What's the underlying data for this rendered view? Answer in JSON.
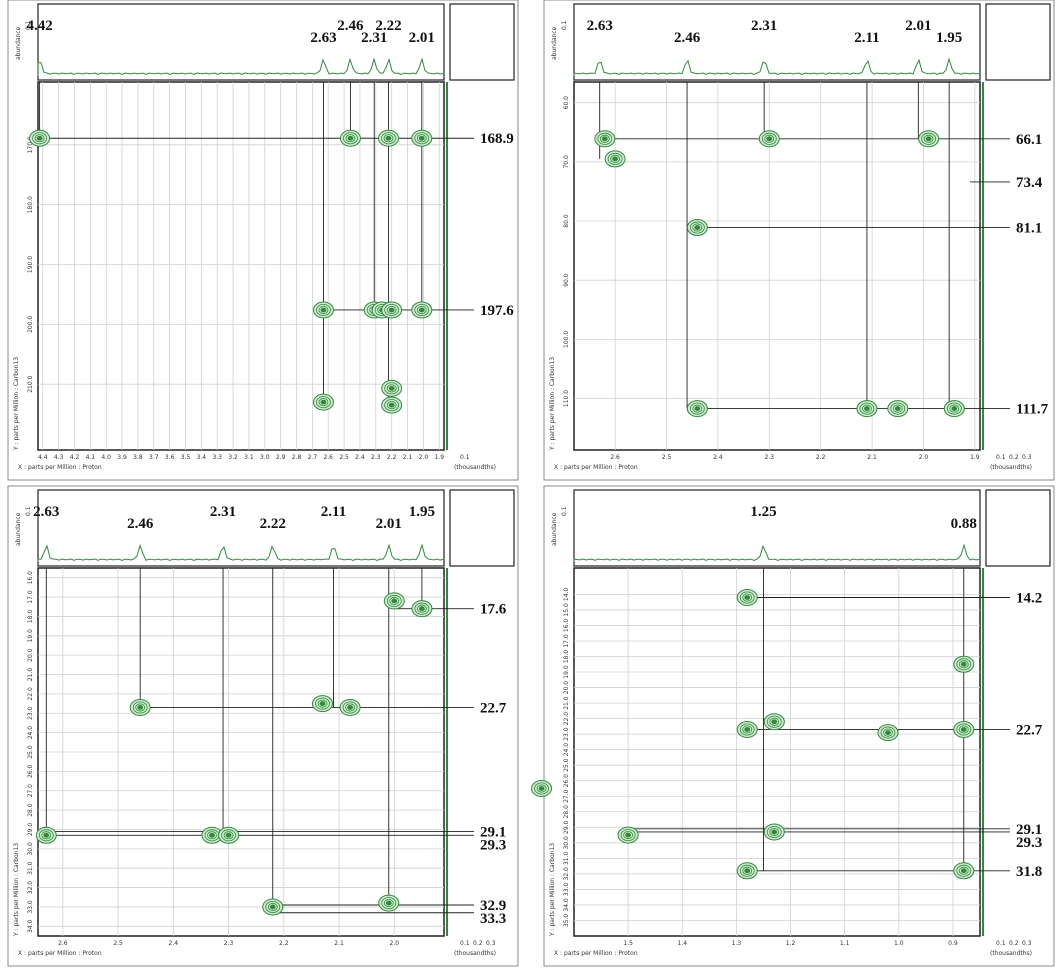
{
  "chart_data": [
    {
      "type": "nmr2d",
      "x_label": "X : parts per Million : Proton",
      "y_label": "Y : parts per Million : Carbon13",
      "top_label": "abundance",
      "top_tick": 0.1,
      "side_label": "(thousandths)",
      "side_ticks": [
        0.1
      ],
      "xlim": [
        4.43,
        1.87
      ],
      "ylim": [
        159.5,
        221
      ],
      "xticks": [
        4.4,
        4.3,
        4.2,
        4.1,
        {
          "value": 4,
          "label": "4.0"
        },
        3.9,
        3.8,
        3.7,
        3.6,
        3.5,
        3.4,
        3.3,
        3.2,
        3.1,
        {
          "value": 3,
          "label": "3.0"
        },
        2.9,
        2.8,
        2.7,
        2.6,
        2.5,
        2.4,
        2.3,
        2.2,
        2.1,
        {
          "value": 2,
          "label": "2.0"
        },
        1.9
      ],
      "yticks": [
        {
          "value": 170,
          "label": "170.0"
        },
        {
          "value": 180,
          "label": "180.0"
        },
        {
          "value": 190,
          "label": "190.0"
        },
        {
          "value": 200,
          "label": "200.0"
        },
        {
          "value": 210,
          "label": "210.0"
        }
      ],
      "h_labels": [
        4.42,
        2.63,
        2.46,
        2.31,
        2.22,
        2.01
      ],
      "c_labels": [
        168.9,
        197.6
      ],
      "peaks": {
        "x": [
          4.42,
          2.46,
          2.22,
          2.01,
          2.63,
          2.31,
          2.26,
          2.2,
          2.01,
          2.63,
          2.2,
          2.2
        ],
        "y": [
          168.9,
          168.9,
          168.9,
          168.9,
          197.6,
          197.6,
          197.6,
          197.6,
          197.6,
          213,
          210.7,
          213.5
        ]
      },
      "color": "#2e8b3a",
      "grid": true
    },
    {
      "type": "nmr2d",
      "x_label": "X : parts per Million : Proton",
      "y_label": "Y : parts per Million : Carbon13",
      "top_label": "abundance",
      "top_tick": 0.1,
      "side_label": "(thousandths)",
      "side_ticks": [
        0.1,
        0.2,
        0.3
      ],
      "xlim": [
        2.68,
        1.89
      ],
      "ylim": [
        56.5,
        118.7
      ],
      "xticks": [
        2.6,
        2.5,
        2.4,
        2.3,
        2.2,
        2.1,
        {
          "value": 2,
          "label": "2.0"
        },
        1.9
      ],
      "yticks": [
        {
          "value": 60,
          "label": "60.0"
        },
        {
          "value": 70,
          "label": "70.0"
        },
        {
          "value": 80,
          "label": "80.0"
        },
        {
          "value": 90,
          "label": "90.0"
        },
        {
          "value": 100,
          "label": "100.0"
        },
        {
          "value": 110,
          "label": "110.0"
        }
      ],
      "h_labels": [
        2.63,
        2.46,
        2.31,
        2.11,
        2.01,
        1.95
      ],
      "c_labels": [
        66.1,
        73.4,
        81.1,
        111.7
      ],
      "peaks": {
        "x": [
          2.62,
          2.6,
          2.3,
          1.99,
          2.44,
          2.44,
          2.11,
          2.05,
          1.94
        ],
        "y": [
          66.1,
          69.5,
          66.1,
          66.1,
          81.1,
          111.7,
          111.7,
          111.7,
          111.7
        ]
      },
      "color": "#2e8b3a",
      "grid": true
    },
    {
      "type": "nmr2d",
      "x_label": "X : parts per Million : Proton",
      "y_label": "Y : parts per Million : Carbon13",
      "top_label": "abundance",
      "top_tick": 0.1,
      "side_label": "(thousandths)",
      "side_ticks": [
        0.1,
        0.2,
        0.3
      ],
      "xlim": [
        2.645,
        1.91
      ],
      "ylim": [
        15.5,
        34.5
      ],
      "xticks": [
        2.6,
        2.5,
        2.4,
        2.3,
        2.2,
        2.1,
        {
          "value": 2,
          "label": "2.0"
        }
      ],
      "yticks": [
        {
          "value": 16,
          "label": "16.0"
        },
        {
          "value": 17,
          "label": "17.0"
        },
        {
          "value": 18,
          "label": "18.0"
        },
        {
          "value": 19,
          "label": "19.0"
        },
        {
          "value": 20,
          "label": "20.0"
        },
        {
          "value": 21,
          "label": "21.0"
        },
        {
          "value": 22,
          "label": "22.0"
        },
        {
          "value": 23,
          "label": "23.0"
        },
        {
          "value": 24,
          "label": "24.0"
        },
        {
          "value": 25,
          "label": "25.0"
        },
        {
          "value": 26,
          "label": "26.0"
        },
        {
          "value": 27,
          "label": "27.0"
        },
        {
          "value": 28,
          "label": "28.0"
        },
        {
          "value": 29,
          "label": "29.0"
        },
        {
          "value": 30,
          "label": "30.0"
        },
        {
          "value": 31,
          "label": "31.0"
        },
        {
          "value": 32,
          "label": "32.0"
        },
        {
          "value": 33,
          "label": "33.0"
        },
        {
          "value": 34,
          "label": "34.0"
        }
      ],
      "h_labels": [
        2.63,
        2.46,
        2.31,
        2.22,
        2.11,
        2.01,
        1.95
      ],
      "c_labels": [
        17.6,
        22.7,
        29.1,
        29.3,
        32.9,
        33.3
      ],
      "peaks": {
        "x": [
          1.95,
          2.0,
          2.46,
          2.13,
          2.08,
          2.63,
          2.33,
          2.3,
          2.22,
          2.01
        ],
        "y": [
          17.6,
          17.2,
          22.7,
          22.5,
          22.7,
          29.3,
          29.3,
          29.3,
          33,
          32.8
        ]
      },
      "color": "#2e8b3a",
      "grid": true
    },
    {
      "type": "nmr2d",
      "x_label": "X : parts per Million : Proton",
      "y_label": "Y : parts per Million : Carbon13",
      "top_label": "abundance",
      "top_tick": 0.1,
      "side_label": "(thousandths)",
      "side_ticks": [
        0.1,
        0.2,
        0.3
      ],
      "xlim": [
        1.6,
        0.85
      ],
      "ylim": [
        12.3,
        36
      ],
      "xticks": [
        1.5,
        1.4,
        1.3,
        1.2,
        1.1,
        {
          "value": 1,
          "label": "1.0"
        },
        0.9
      ],
      "yticks": [
        {
          "value": 14,
          "label": "14.0"
        },
        {
          "value": 15,
          "label": "15.0"
        },
        {
          "value": 16,
          "label": "16.0"
        },
        {
          "value": 17,
          "label": "17.0"
        },
        {
          "value": 18,
          "label": "18.0"
        },
        {
          "value": 19,
          "label": "19.0"
        },
        {
          "value": 20,
          "label": "20.0"
        },
        {
          "value": 21,
          "label": "21.0"
        },
        {
          "value": 22,
          "label": "22.0"
        },
        {
          "value": 23,
          "label": "23.0"
        },
        {
          "value": 24,
          "label": "24.0"
        },
        {
          "value": 25,
          "label": "25.0"
        },
        {
          "value": 26,
          "label": "26.0"
        },
        {
          "value": 27,
          "label": "27.0"
        },
        {
          "value": 28,
          "label": "28.0"
        },
        {
          "value": 29,
          "label": "29.0"
        },
        {
          "value": 30,
          "label": "30.0"
        },
        {
          "value": 31,
          "label": "31.0"
        },
        {
          "value": 32,
          "label": "32.0"
        },
        {
          "value": 33,
          "label": "33.0"
        },
        {
          "value": 34,
          "label": "34.0"
        },
        {
          "value": 35,
          "label": "35.0"
        }
      ],
      "h_labels": [
        1.25,
        0.88
      ],
      "c_labels": [
        14.2,
        22.7,
        29.1,
        29.3,
        31.8
      ],
      "peaks": {
        "x": [
          1.28,
          1.28,
          1.23,
          0.88,
          0.88,
          1.28,
          1.23,
          1.5,
          1.02,
          1.66,
          0.88
        ],
        "y": [
          14.2,
          22.7,
          29.3,
          22.7,
          31.8,
          31.8,
          22.2,
          29.5,
          22.9,
          26.5,
          18.5
        ]
      },
      "color": "#2e8b3a",
      "grid": true
    }
  ]
}
